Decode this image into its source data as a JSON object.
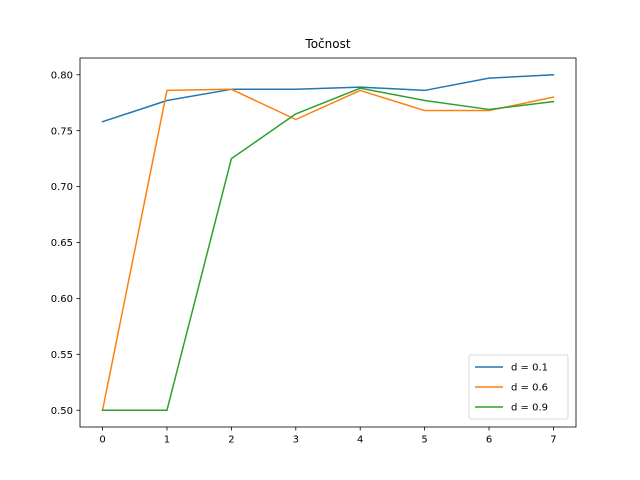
{
  "chart_data": {
    "type": "line",
    "title": "Točnost",
    "xlabel": "",
    "ylabel": "",
    "x": [
      0,
      1,
      2,
      3,
      4,
      5,
      6,
      7
    ],
    "xlim": [
      -0.35,
      7.35
    ],
    "ylim": [
      0.485,
      0.815
    ],
    "x_ticks": [
      "0",
      "1",
      "2",
      "3",
      "4",
      "5",
      "6",
      "7"
    ],
    "y_ticks": [
      "0.50",
      "0.55",
      "0.60",
      "0.65",
      "0.70",
      "0.75",
      "0.80"
    ],
    "grid": false,
    "legend_position": "lower right",
    "series": [
      {
        "name": "d = 0.1",
        "color": "#1f77b4",
        "values": [
          0.758,
          0.777,
          0.787,
          0.787,
          0.789,
          0.786,
          0.797,
          0.8
        ]
      },
      {
        "name": "d = 0.6",
        "color": "#ff7f0e",
        "values": [
          0.5,
          0.786,
          0.787,
          0.76,
          0.786,
          0.768,
          0.768,
          0.78
        ]
      },
      {
        "name": "d = 0.9",
        "color": "#2ca02c",
        "values": [
          0.5,
          0.5,
          0.725,
          0.765,
          0.788,
          0.777,
          0.769,
          0.776
        ]
      }
    ]
  }
}
